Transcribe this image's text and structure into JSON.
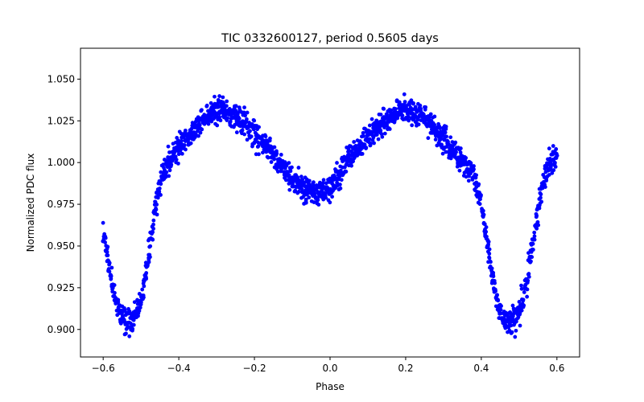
{
  "chart_data": {
    "type": "scatter",
    "title": "TIC 0332600127, period 0.5605 days",
    "xlabel": "Phase",
    "ylabel": "Normalized PDC flux",
    "xlim": [
      -0.66,
      0.66
    ],
    "ylim": [
      0.8835,
      1.0685
    ],
    "x_ticks": [
      -0.6,
      -0.4,
      -0.2,
      0.0,
      0.2,
      0.4,
      0.6
    ],
    "x_tick_labels": [
      "−0.6",
      "−0.4",
      "−0.2",
      "0.0",
      "0.2",
      "0.4",
      "0.6"
    ],
    "y_ticks": [
      0.9,
      0.925,
      0.95,
      0.975,
      1.0,
      1.025,
      1.05
    ],
    "y_tick_labels": [
      "0.900",
      "0.925",
      "0.950",
      "0.975",
      "1.000",
      "1.025",
      "1.050"
    ],
    "grid": false,
    "marker_color": "#0000ff",
    "series": [
      {
        "name": "PDC flux",
        "phase_range": [
          -0.6,
          0.6
        ],
        "approx_light_curve": {
          "x": [
            -0.6,
            -0.58,
            -0.56,
            -0.54,
            -0.52,
            -0.5,
            -0.48,
            -0.46,
            -0.44,
            -0.42,
            -0.4,
            -0.35,
            -0.3,
            -0.25,
            -0.2,
            -0.15,
            -0.1,
            -0.05,
            -0.03,
            0.0,
            0.05,
            0.1,
            0.15,
            0.2,
            0.25,
            0.3,
            0.35,
            0.38,
            0.4,
            0.42,
            0.44,
            0.46,
            0.48,
            0.5,
            0.52,
            0.54,
            0.56,
            0.58,
            0.6
          ],
          "y": [
            0.96,
            0.93,
            0.912,
            0.905,
            0.906,
            0.918,
            0.945,
            0.975,
            0.995,
            1.003,
            1.01,
            1.022,
            1.032,
            1.028,
            1.018,
            1.005,
            0.99,
            0.982,
            0.981,
            0.985,
            1.002,
            1.015,
            1.025,
            1.032,
            1.027,
            1.015,
            1.0,
            0.993,
            0.975,
            0.945,
            0.918,
            0.906,
            0.905,
            0.91,
            0.928,
            0.958,
            0.985,
            1.0,
            1.005
          ]
        }
      }
    ]
  }
}
